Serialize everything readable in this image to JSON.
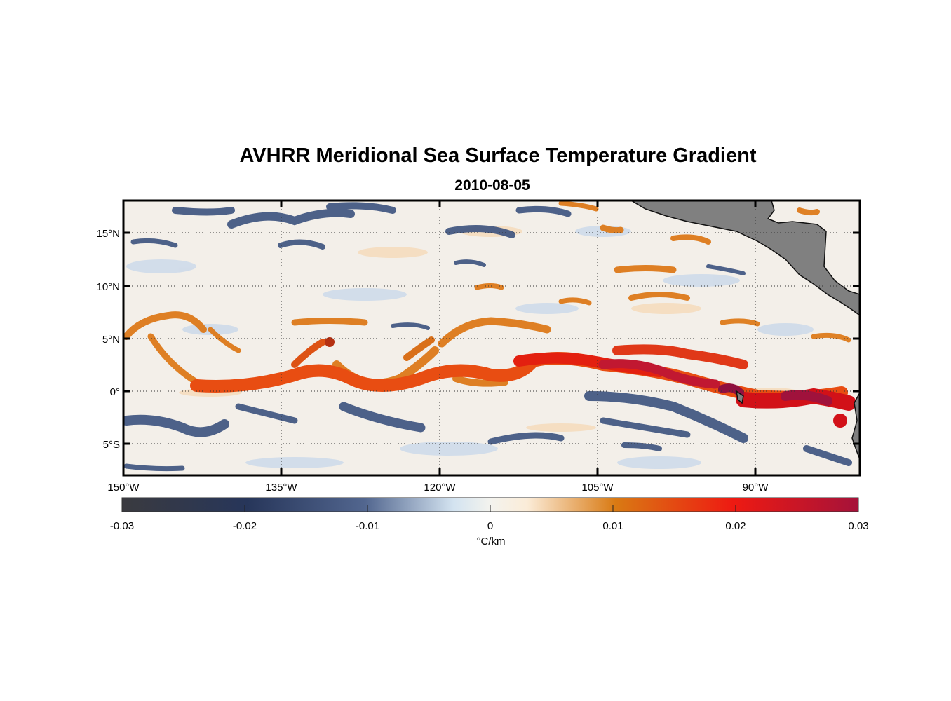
{
  "figure": {
    "title": "AVHRR Meridional Sea Surface Temperature Gradient",
    "subtitle": "2010-08-05"
  },
  "map": {
    "lon_range": [
      -150,
      -80
    ],
    "lat_range": [
      -8,
      18
    ],
    "land_color": "#808080",
    "grid": "dotted",
    "lon_ticks": [
      {
        "value": -150,
        "label": "150°W"
      },
      {
        "value": -135,
        "label": "135°W"
      },
      {
        "value": -120,
        "label": "120°W"
      },
      {
        "value": -105,
        "label": "105°W"
      },
      {
        "value": -90,
        "label": "90°W"
      }
    ],
    "lat_ticks": [
      {
        "value": 15,
        "label": "15°N"
      },
      {
        "value": 10,
        "label": "10°N"
      },
      {
        "value": 5,
        "label": "5°N"
      },
      {
        "value": 0,
        "label": "0°"
      },
      {
        "value": -5,
        "label": "5°S"
      }
    ]
  },
  "colorbar": {
    "min": -0.03,
    "max": 0.03,
    "ticks": [
      "-0.03",
      "-0.02",
      "-0.01",
      "0",
      "0.01",
      "0.02",
      "0.03"
    ],
    "units": "°C/km",
    "colors": [
      "#3a3a3f",
      "#27365a",
      "#52668f",
      "#d3e3f0",
      "#fbecd8",
      "#d97a13",
      "#ee1a12",
      "#a5123a"
    ]
  }
}
